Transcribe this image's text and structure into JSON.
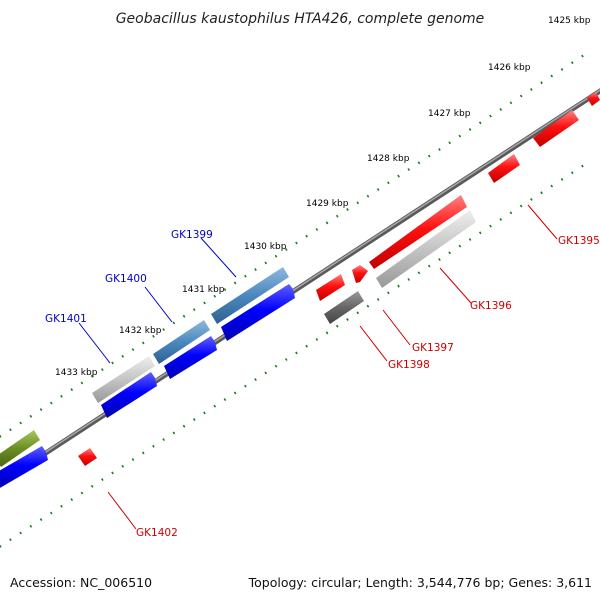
{
  "title": "Geobacillus kaustophilus HTA426, complete genome",
  "accession": "Accession: NC_006510",
  "summary": "Topology: circular; Length: 3,544,776 bp; Genes: 3,611",
  "kbp_ticks": [
    "1425 kbp",
    "1426 kbp",
    "1427 kbp",
    "1428 kbp",
    "1429 kbp",
    "1430 kbp",
    "1431 kbp",
    "1432 kbp",
    "1433 kbp"
  ],
  "genes": [
    {
      "label": "GK1395",
      "color": "#cc0000",
      "strand": "minus"
    },
    {
      "label": "GK1396",
      "color": "#cc0000",
      "strand": "minus"
    },
    {
      "label": "GK1397",
      "color": "#cc0000",
      "strand": "minus"
    },
    {
      "label": "GK1398",
      "color": "#cc0000",
      "strand": "minus"
    },
    {
      "label": "GK1399",
      "color": "#0000cc",
      "strand": "plus"
    },
    {
      "label": "GK1400",
      "color": "#0000cc",
      "strand": "plus"
    },
    {
      "label": "GK1401",
      "color": "#0000cc",
      "strand": "plus"
    },
    {
      "label": "GK1402",
      "color": "#cc0000",
      "strand": "minus"
    }
  ],
  "colors": {
    "backbone": "#777777",
    "tick": "#1a7a1a",
    "plus_strand": "#0000ee",
    "minus_strand": "#ee0000",
    "feature_blue": "#4682b4",
    "feature_gray": "#c8c8c8",
    "feature_dark": "#666666",
    "feature_olive": "#6b8e23"
  }
}
